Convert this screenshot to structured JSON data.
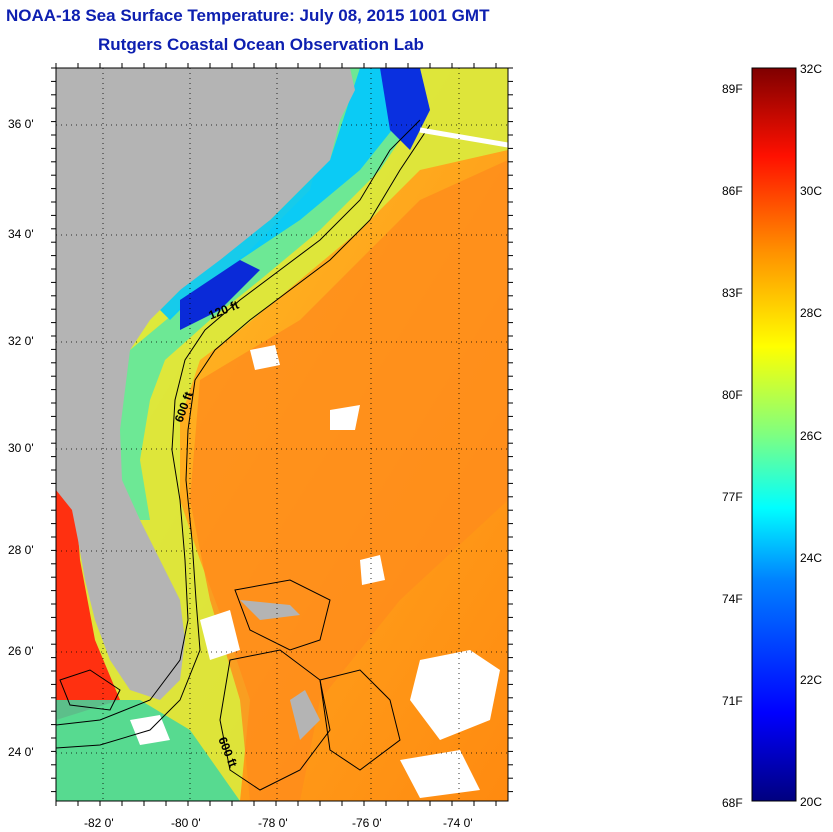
{
  "title": "NOAA-18 Sea Surface Temperature:  July 08, 2015 1001 GMT",
  "subtitle": "Rutgers Coastal Ocean Observation Lab",
  "lat_labels": [
    "36 0'",
    "34 0'",
    "32 0'",
    "30 0'",
    "28 0'",
    "26 0'",
    "24 0'"
  ],
  "lon_labels": [
    "-82 0'",
    "-80 0'",
    "-78 0'",
    "-76 0'",
    "-74 0'"
  ],
  "isobath_labels": [
    "120 ft",
    "600 ft",
    "600 ft"
  ],
  "colorbar": {
    "fahrenheit": [
      "89F",
      "86F",
      "83F",
      "80F",
      "77F",
      "74F",
      "71F",
      "68F"
    ],
    "celsius": [
      "32C",
      "30C",
      "28C",
      "26C",
      "24C",
      "22C",
      "20C"
    ],
    "range_c": [
      20,
      32
    ],
    "colors": [
      "#00007f",
      "#0000ff",
      "#0080ff",
      "#00ffff",
      "#80ff80",
      "#ffff00",
      "#ff8000",
      "#ff0000",
      "#7f0000"
    ]
  },
  "colors": {
    "land": "#b4b4b4",
    "title": "#0d1fb0",
    "cloud": "#ffffff"
  }
}
